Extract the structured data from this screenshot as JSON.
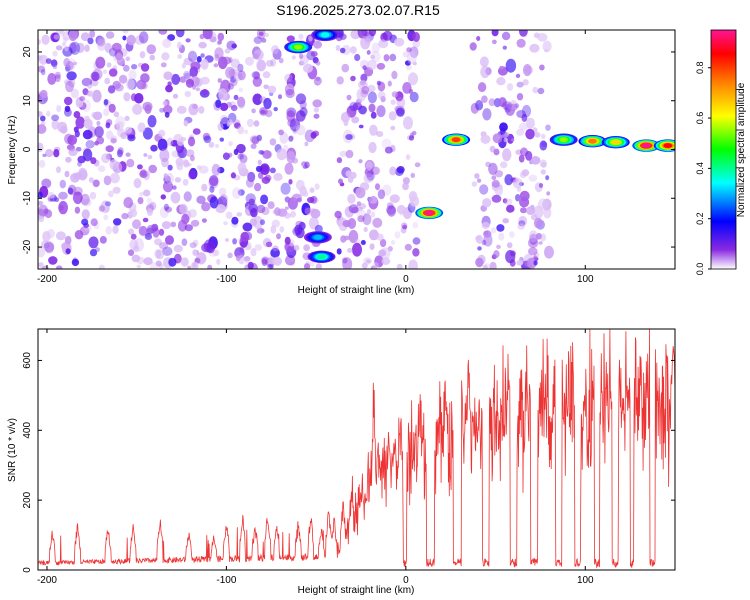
{
  "title": "S196.2025.273.02.07.R15",
  "colors": {
    "snr_line": "#ee3333",
    "axis": "#000000",
    "colormap": [
      "#ffffff",
      "#8a2be2",
      "#0000ff",
      "#00ffff",
      "#00ff00",
      "#ffff00",
      "#ff8000",
      "#ff0000",
      "#ff1493"
    ]
  },
  "chart_data": [
    {
      "type": "heatmap",
      "name": "spectrogram",
      "xlabel": "Height of straight line (km)",
      "ylabel": "Frequency (Hz)",
      "xlim": [
        -205,
        150
      ],
      "ylim": [
        -24.5,
        24.5
      ],
      "xticks": [
        -200,
        -100,
        0,
        100
      ],
      "yticks": [
        -20,
        -10,
        0,
        10,
        20
      ],
      "colorbar": {
        "label": "Normalized spectral amplitude",
        "range": [
          0.0,
          0.95
        ],
        "ticks": [
          0.0,
          0.2,
          0.4,
          0.6,
          0.8
        ],
        "tick_labels": [
          "0.0",
          "0.2",
          "0.4",
          "0.6",
          "0.8"
        ]
      },
      "gaps_km": [
        [
          -48,
          -38
        ],
        [
          7,
          37
        ],
        [
          80,
          150
        ]
      ],
      "features": [
        {
          "x": -60,
          "freq": 21,
          "amp": 0.55
        },
        {
          "x": -45,
          "freq": 23.5,
          "amp": 0.35
        },
        {
          "x": -49,
          "freq": -18,
          "amp": 0.3
        },
        {
          "x": -47,
          "freq": -22,
          "amp": 0.4
        },
        {
          "x": 13,
          "freq": -13,
          "amp": 0.95
        },
        {
          "x": 28,
          "freq": 2,
          "amp": 0.8
        },
        {
          "x": 88,
          "freq": 2,
          "amp": 0.55
        },
        {
          "x": 104,
          "freq": 1.7,
          "amp": 0.75
        },
        {
          "x": 117,
          "freq": 1.5,
          "amp": 0.65
        },
        {
          "x": 134,
          "freq": 0.8,
          "amp": 0.95
        },
        {
          "x": 146,
          "freq": 0.8,
          "amp": 0.85
        }
      ]
    },
    {
      "type": "line",
      "name": "snr",
      "xlabel": "Height of straight line (km)",
      "ylabel": "SNR (10 * v/v)",
      "xlim": [
        -205,
        150
      ],
      "ylim": [
        0,
        690
      ],
      "xticks": [
        -200,
        -100,
        0,
        100
      ],
      "yticks": [
        0,
        200,
        400,
        600
      ],
      "baseline_profile": [
        [
          -205,
          20
        ],
        [
          -40,
          40
        ],
        [
          -30,
          150
        ],
        [
          -20,
          250
        ],
        [
          -10,
          300
        ],
        [
          0,
          330
        ],
        [
          10,
          340
        ],
        [
          30,
          400
        ],
        [
          60,
          450
        ],
        [
          90,
          470
        ],
        [
          120,
          490
        ],
        [
          150,
          490
        ]
      ],
      "peaks": [
        [
          -197,
          120
        ],
        [
          -183,
          140
        ],
        [
          -166,
          135
        ],
        [
          -152,
          140
        ],
        [
          -137,
          155
        ],
        [
          -121,
          120
        ],
        [
          -107,
          115
        ],
        [
          -100,
          150
        ],
        [
          -91,
          170
        ],
        [
          -84,
          140
        ],
        [
          -77,
          175
        ],
        [
          -72,
          135
        ],
        [
          -60,
          150
        ],
        [
          -53,
          170
        ],
        [
          -47,
          130
        ],
        [
          -43,
          190
        ],
        [
          -40,
          160
        ],
        [
          -35,
          200
        ],
        [
          -30,
          260
        ],
        [
          -25,
          290
        ],
        [
          -21,
          350
        ],
        [
          -18,
          570
        ],
        [
          -15,
          320
        ],
        [
          -10,
          400
        ],
        [
          -6,
          390
        ],
        [
          -3,
          470
        ],
        [
          0,
          540
        ],
        [
          4,
          400
        ],
        [
          8,
          580
        ],
        [
          12,
          460
        ],
        [
          15,
          430
        ],
        [
          19,
          520
        ],
        [
          22,
          610
        ],
        [
          27,
          520
        ],
        [
          31,
          580
        ],
        [
          35,
          640
        ],
        [
          38,
          560
        ],
        [
          43,
          615
        ],
        [
          46,
          660
        ],
        [
          50,
          560
        ],
        [
          54,
          620
        ],
        [
          58,
          645
        ],
        [
          63,
          570
        ],
        [
          67,
          600
        ],
        [
          70,
          655
        ],
        [
          75,
          560
        ],
        [
          79,
          590
        ],
        [
          83,
          630
        ],
        [
          87,
          565
        ],
        [
          92,
          620
        ],
        [
          96,
          580
        ],
        [
          100,
          600
        ],
        [
          105,
          620
        ],
        [
          108,
          650
        ],
        [
          112,
          555
        ],
        [
          115,
          640
        ],
        [
          120,
          575
        ],
        [
          124,
          620
        ],
        [
          127,
          690
        ],
        [
          131,
          600
        ],
        [
          135,
          650
        ],
        [
          139,
          570
        ],
        [
          142,
          600
        ],
        [
          145,
          630
        ],
        [
          149,
          640
        ]
      ],
      "dips": [
        [
          -1.5,
          0.5
        ],
        [
          11.5,
          16
        ],
        [
          26.5,
          31
        ],
        [
          42.5,
          46.5
        ],
        [
          58,
          62
        ],
        [
          69.5,
          73.5
        ],
        [
          83.5,
          87
        ],
        [
          94,
          97.5
        ],
        [
          105,
          108
        ],
        [
          115,
          118.5
        ],
        [
          125,
          127
        ],
        [
          136,
          139
        ]
      ]
    }
  ]
}
